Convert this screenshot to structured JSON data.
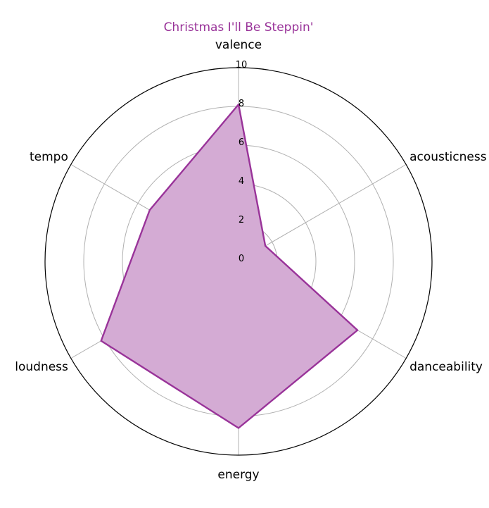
{
  "chart_data": {
    "type": "radar",
    "title": "Christmas I'll Be Steppin'",
    "axes": [
      "valence",
      "acousticness",
      "danceability",
      "energy",
      "loudness",
      "tempo"
    ],
    "series": [
      {
        "values": [
          8.1,
          1.6,
          7.1,
          8.6,
          8.2,
          5.3
        ]
      }
    ],
    "rlim": [
      0,
      10
    ],
    "rticks": [
      "0",
      "2",
      "4",
      "6",
      "8",
      "10"
    ],
    "grid": true,
    "colors": {
      "title": "#993399",
      "series_line": "#993399",
      "series_fill": "#d4abd4",
      "grid": "#b0b0b0",
      "frame": "#000000"
    }
  }
}
